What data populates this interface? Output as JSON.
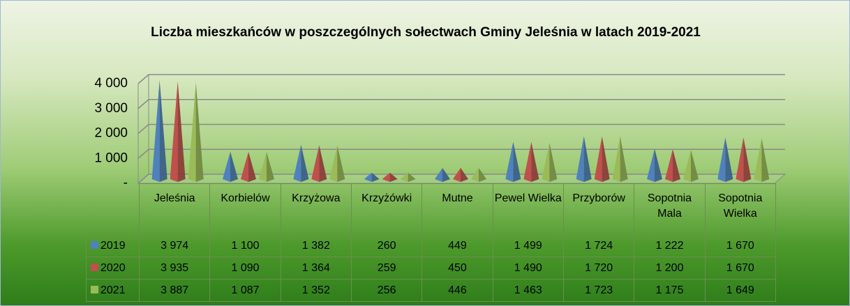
{
  "chart_data": {
    "type": "bar",
    "title": "Liczba mieszkańców w poszczególnych sołectwach Gminy Jeleśnia w latach 2019-2021",
    "categories": [
      "Jeleśnia",
      "Korbielów",
      "Krzyżowa",
      "Krzyżówki",
      "Mutne",
      "Pewel Wielka",
      "Przyborów",
      "Sopotnia Mala",
      "Sopotnia Wielka"
    ],
    "series": [
      {
        "name": "2019",
        "color": "#4f81bd",
        "values": [
          3974,
          1100,
          1382,
          260,
          449,
          1499,
          1724,
          1222,
          1670
        ],
        "value_labels": [
          "3 974",
          "1 100",
          "1 382",
          "260",
          "449",
          "1 499",
          "1 724",
          "1 222",
          "1 670"
        ]
      },
      {
        "name": "2020",
        "color": "#c0504d",
        "values": [
          3935,
          1090,
          1364,
          259,
          450,
          1490,
          1720,
          1200,
          1670
        ],
        "value_labels": [
          "3 935",
          "1 090",
          "1 364",
          "259",
          "450",
          "1 490",
          "1 720",
          "1 200",
          "1 670"
        ]
      },
      {
        "name": "2021",
        "color": "#9bbb59",
        "values": [
          3887,
          1087,
          1352,
          256,
          446,
          1463,
          1723,
          1175,
          1649
        ],
        "value_labels": [
          "3 887",
          "1 087",
          "1 352",
          "256",
          "446",
          "1 463",
          "1 723",
          "1 175",
          "1 649"
        ]
      }
    ],
    "ylim": [
      0,
      4000
    ],
    "yticks": [
      {
        "value": 0,
        "label": "-"
      },
      {
        "value": 1000,
        "label": "1 000"
      },
      {
        "value": 2000,
        "label": "2 000"
      },
      {
        "value": 3000,
        "label": "3 000"
      },
      {
        "value": 4000,
        "label": "4 000"
      }
    ],
    "grid": true
  }
}
